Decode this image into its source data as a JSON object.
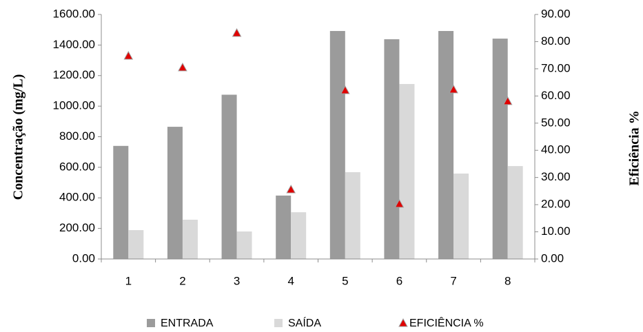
{
  "chart_data": {
    "type": "bar",
    "ylabel": "Concentração (mg/L)",
    "y2label": "Eficiência %",
    "categories": [
      "1",
      "2",
      "3",
      "4",
      "5",
      "6",
      "7",
      "8"
    ],
    "series": [
      {
        "name": "ENTRADA",
        "color": "#9b9b9b",
        "values": [
          740,
          865,
          1075,
          415,
          1492,
          1438,
          1492,
          1442
        ]
      },
      {
        "name": "SAÍDA",
        "color": "#d9d9d9",
        "values": [
          189,
          257,
          180,
          306,
          568,
          1145,
          559,
          608
        ]
      },
      {
        "name": "EFICIÊNCIA %",
        "color": "#e00000",
        "type": "scatter",
        "axis": "y2",
        "values": [
          74.8,
          70.5,
          83.2,
          25.6,
          62.1,
          20.3,
          62.4,
          58.1
        ]
      }
    ],
    "ylim": [
      0,
      1600
    ],
    "yticks": [
      {
        "value": 0,
        "label": "0.00"
      },
      {
        "value": 200,
        "label": "200.00"
      },
      {
        "value": 400,
        "label": "400.00"
      },
      {
        "value": 600,
        "label": "600.00"
      },
      {
        "value": 800,
        "label": "800.00"
      },
      {
        "value": 1000,
        "label": "1000.00"
      },
      {
        "value": 1200,
        "label": "1200.00"
      },
      {
        "value": 1400,
        "label": "1400.00"
      },
      {
        "value": 1600,
        "label": "1600.00"
      }
    ],
    "y2lim": [
      0,
      90
    ],
    "y2ticks": [
      {
        "value": 0,
        "label": "0.00"
      },
      {
        "value": 10,
        "label": "10.00"
      },
      {
        "value": 20,
        "label": "20.00"
      },
      {
        "value": 30,
        "label": "30.00"
      },
      {
        "value": 40,
        "label": "40.00"
      },
      {
        "value": 50,
        "label": "50.00"
      },
      {
        "value": 60,
        "label": "60.00"
      },
      {
        "value": 70,
        "label": "70.00"
      },
      {
        "value": 80,
        "label": "80.00"
      },
      {
        "value": 90,
        "label": "90.00"
      }
    ],
    "legend": "bottom"
  }
}
